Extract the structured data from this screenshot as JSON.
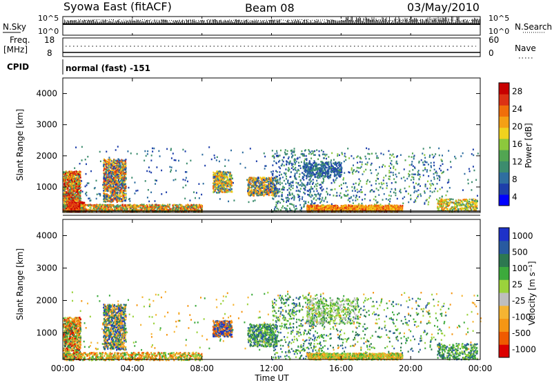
{
  "header": {
    "station": "Syowa East (fitACF)",
    "beam": "Beam 08",
    "date": "03/May/2010"
  },
  "aux_panels": {
    "nsky_label": "N.Sky",
    "nsky_ticks": [
      "10^5",
      "10^0"
    ],
    "nsearch_label": "N.Search",
    "nsearch_ticks": [
      "10^5",
      "10^0"
    ],
    "freq_label_1": "Freq.",
    "freq_label_2": "[MHz]",
    "freq_ticks": [
      "18",
      "8"
    ],
    "nave_label": "Nave",
    "nave_ticks": [
      "60",
      "0"
    ],
    "cpid_label": "CPID",
    "cpid_value": "normal (fast) -151"
  },
  "chart_data": [
    {
      "type": "heatmap",
      "name": "power",
      "ylabel": "Slant Range [km]",
      "yticks": [
        "4000",
        "3000",
        "2000",
        "1000"
      ],
      "ylim": [
        180,
        4500
      ],
      "xlim": [
        0,
        24
      ],
      "colorbar_label": "Power [dB]",
      "colorbar_ticks": [
        "28",
        "24",
        "20",
        "16",
        "12",
        "8",
        "4"
      ],
      "colormap": [
        "#0000ff",
        "#1e3faa",
        "#2f6ea0",
        "#3c8c6e",
        "#52a552",
        "#8cc83c",
        "#f0d21e",
        "#f5a014",
        "#f06e0a",
        "#dc3214",
        "#c80000"
      ]
    },
    {
      "type": "heatmap",
      "name": "velocity",
      "ylabel": "Slant Range [km]",
      "yticks": [
        "4000",
        "3000",
        "2000",
        "1000"
      ],
      "ylim": [
        180,
        4500
      ],
      "xlim": [
        0,
        24
      ],
      "colorbar_label": "Velocity [m s⁻¹]",
      "colorbar_ticks": [
        "1000",
        "500",
        "100",
        "25",
        "-25",
        "-100",
        "-500",
        "-1000"
      ],
      "colormap": [
        "#dc0000",
        "#f05a00",
        "#f59614",
        "#f5b432",
        "#bebebe",
        "#9bd23c",
        "#3caa3c",
        "#2d7850",
        "#285aa0",
        "#1e32c8"
      ]
    }
  ],
  "xaxis": {
    "ticks": [
      "00:00",
      "04:00",
      "08:00",
      "12:00",
      "16:00",
      "20:00",
      "00:00"
    ],
    "label": "Time UT"
  }
}
